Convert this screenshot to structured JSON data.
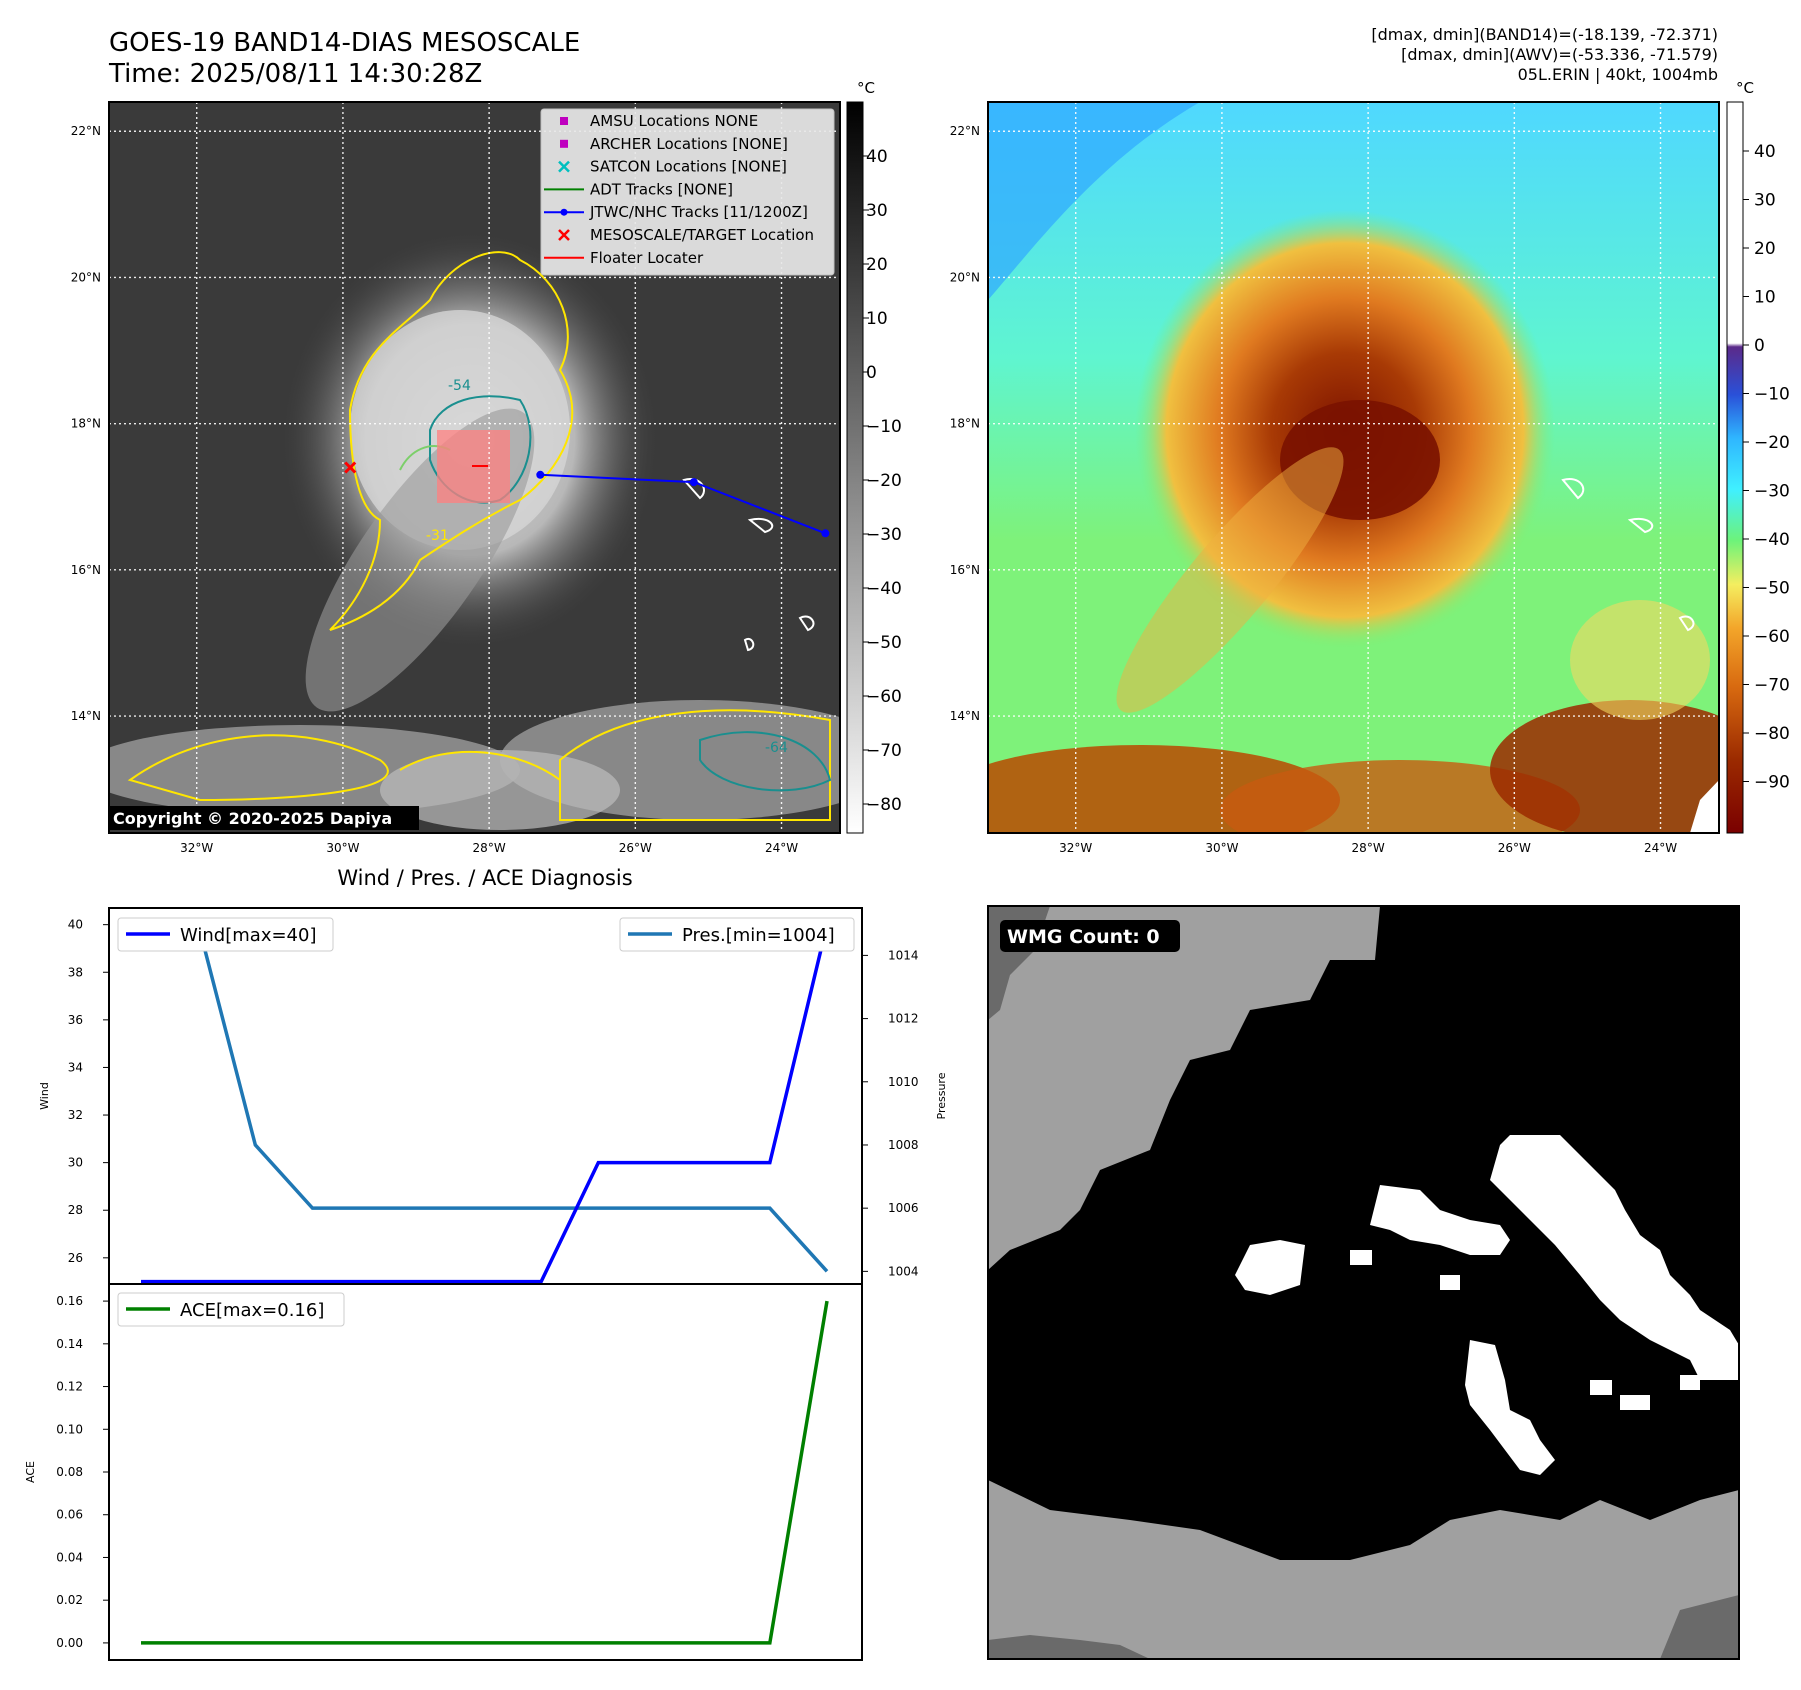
{
  "header": {
    "title": "GOES-19 BAND14-DIAS MESOSCALE",
    "time": "Time: 2025/08/11 14:30:28Z",
    "info_line1": "[dmax, dmin](BAND14)=(-18.139, -72.371)",
    "info_line2": "[dmax, dmin](AWV)=(-53.336, -71.579)",
    "info_line3": "05L.ERIN | 40kt, 1004mb"
  },
  "map": {
    "lon_labels": [
      "32°W",
      "30°W",
      "28°W",
      "26°W",
      "24°W"
    ],
    "lat_labels": [
      "22°N",
      "20°N",
      "18°N",
      "16°N",
      "14°N"
    ],
    "copyright": "Copyright © 2020-2025 Dapiya",
    "legend": [
      {
        "label": "AMSU Locations NONE",
        "marker": "square",
        "color": "#bf00bf"
      },
      {
        "label": "ARCHER Locations [NONE]",
        "marker": "square",
        "color": "#bf00bf"
      },
      {
        "label": "SATCON Locations [NONE]",
        "marker": "x",
        "color": "#00bfbf"
      },
      {
        "label": "ADT Tracks [NONE]",
        "marker": "line",
        "color": "#008000"
      },
      {
        "label": "JTWC/NHC Tracks [11/1200Z]",
        "marker": "dotline",
        "color": "#0000ff"
      },
      {
        "label": "MESOSCALE/TARGET Location",
        "marker": "x",
        "color": "#ff0000"
      },
      {
        "label": "Floater Locater",
        "marker": "line",
        "color": "#ff0000"
      }
    ],
    "contour_labels": [
      "-31",
      "-54",
      "-64"
    ],
    "track": [
      {
        "lon": -27.3,
        "lat": 17.3
      },
      {
        "lon": -25.2,
        "lat": 17.2
      },
      {
        "lon": -23.4,
        "lat": 16.5
      }
    ],
    "target": {
      "lon": -29.9,
      "lat": 17.4
    }
  },
  "colorbars": {
    "unit": "°C",
    "gray_ticks": [
      "40",
      "30",
      "20",
      "10",
      "0",
      "−10",
      "−20",
      "−30",
      "−40",
      "−50",
      "−60",
      "−70",
      "−80"
    ],
    "color_ticks": [
      "40",
      "30",
      "20",
      "10",
      "0",
      "−10",
      "−20",
      "−30",
      "−40",
      "−50",
      "−60",
      "−70",
      "−80",
      "−90"
    ]
  },
  "wmg": {
    "count_label": "WMG Count: 0"
  },
  "chart_data": [
    {
      "type": "line",
      "title": "Wind / Pres. / ACE Diagnosis",
      "ylabel": "Wind",
      "ylim": [
        24.9,
        40.7
      ],
      "yticks": [
        "40",
        "38",
        "36",
        "34",
        "32",
        "30",
        "28",
        "26"
      ],
      "legend": "Wind[max=40]",
      "color": "#0000ff",
      "x": [
        0,
        1,
        2,
        3,
        4,
        5,
        6,
        7,
        8,
        9,
        10,
        11,
        12
      ],
      "values": [
        25,
        25,
        25,
        25,
        25,
        25,
        25,
        25,
        30,
        30,
        30,
        30,
        40
      ]
    },
    {
      "type": "line",
      "ylabel": "Pressure",
      "ylim": [
        1003.6,
        1015.5
      ],
      "yticks": [
        "1014",
        "1012",
        "1010",
        "1008",
        "1006",
        "1004"
      ],
      "legend": "Pres.[min=1004]",
      "color": "#1f77b4",
      "x": [
        0,
        1,
        2,
        3,
        4,
        5,
        6,
        7,
        8,
        9,
        10,
        11,
        12
      ],
      "values": [
        1015,
        1015,
        1008,
        1006,
        1006,
        1006,
        1006,
        1006,
        1006,
        1006,
        1006,
        1006,
        1004
      ]
    },
    {
      "type": "line",
      "ylabel": "ACE",
      "ylim": [
        -0.008,
        0.168
      ],
      "yticks": [
        "0.16",
        "0.14",
        "0.12",
        "0.10",
        "0.08",
        "0.06",
        "0.04",
        "0.02",
        "0.00"
      ],
      "legend": "ACE[max=0.16]",
      "color": "#008000",
      "x": [
        0,
        1,
        2,
        3,
        4,
        5,
        6,
        7,
        8,
        9,
        10,
        11,
        12
      ],
      "values": [
        0,
        0,
        0,
        0,
        0,
        0,
        0,
        0,
        0,
        0,
        0,
        0,
        0.16
      ]
    }
  ]
}
